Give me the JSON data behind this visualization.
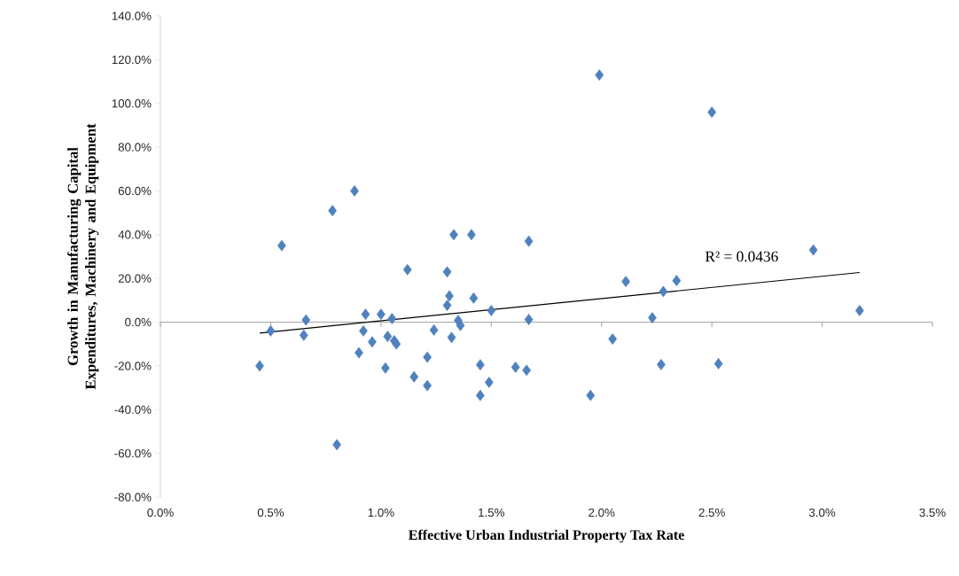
{
  "chart_data": {
    "type": "scatter",
    "xlabel": "Effective Urban Industrial Property Tax Rate",
    "ylabel": "Growth in Manufacturing Capital Expenditures, Machinery and Equipment",
    "xlim": [
      0,
      3.5
    ],
    "ylim": [
      -80,
      140
    ],
    "xticks": [
      {
        "value": 0,
        "label": "0.0%"
      },
      {
        "value": 0.5,
        "label": "0.5%"
      },
      {
        "value": 1,
        "label": "1.0%"
      },
      {
        "value": 1.5,
        "label": "1.5%"
      },
      {
        "value": 2,
        "label": "2.0%"
      },
      {
        "value": 2.5,
        "label": "2.5%"
      },
      {
        "value": 3,
        "label": "3.0%"
      },
      {
        "value": 3.5,
        "label": "3.5%"
      }
    ],
    "yticks": [
      {
        "value": -80,
        "label": "-80.0%"
      },
      {
        "value": -60,
        "label": "-60.0%"
      },
      {
        "value": -40,
        "label": "-40.0%"
      },
      {
        "value": -20,
        "label": "-20.0%"
      },
      {
        "value": 0,
        "label": "0.0%"
      },
      {
        "value": 20,
        "label": "20.0%"
      },
      {
        "value": 40,
        "label": "40.0%"
      },
      {
        "value": 60,
        "label": "60.0%"
      },
      {
        "value": 80,
        "label": "80.0%"
      },
      {
        "value": 100,
        "label": "100.0%"
      },
      {
        "value": 120,
        "label": "120.0%"
      },
      {
        "value": 140,
        "label": "140.0%"
      }
    ],
    "grid": false,
    "ref_lines": [
      {
        "axis": "y",
        "value": 0,
        "color": "#a6a6a6"
      }
    ],
    "annotations": [
      "R² = 0.0436"
    ],
    "series": [
      {
        "color": "#4f81bd",
        "marker": "diamond",
        "x": [
          0.45,
          0.5,
          0.55,
          0.66,
          0.65,
          0.78,
          0.88,
          0.8,
          0.9,
          0.92,
          0.93,
          0.96,
          1.0,
          1.02,
          1.03,
          1.05,
          1.06,
          1.07,
          1.12,
          1.15,
          1.21,
          1.21,
          1.24,
          1.3,
          1.3,
          1.31,
          1.33,
          1.32,
          1.35,
          1.36,
          1.41,
          1.42,
          1.45,
          1.45,
          1.49,
          1.5,
          1.61,
          1.66,
          1.67,
          1.67,
          1.95,
          1.99,
          2.05,
          2.11,
          2.23,
          2.27,
          2.28,
          2.34,
          2.5,
          2.53,
          2.96,
          3.17
        ],
        "values": [
          -20,
          -4,
          35,
          1,
          -6,
          51,
          60,
          -56,
          -14,
          -4,
          3.6,
          -9,
          3.6,
          -21,
          -6.5,
          1.6,
          -8.5,
          -10,
          24,
          -25,
          -16,
          -29,
          -3.6,
          23,
          7.7,
          12,
          40,
          -7,
          0.8,
          -1.5,
          40,
          11,
          -19.5,
          -33.5,
          -27.5,
          5.3,
          -20.6,
          -22,
          37,
          1.2,
          -33.5,
          113,
          -7.7,
          18.6,
          2,
          -19.4,
          14,
          19,
          96,
          -19,
          33,
          5.3
        ]
      },
      {
        "type": "line",
        "color": "#000000",
        "marker": "none",
        "x": [
          0.45,
          3.17
        ],
        "values": [
          -5,
          22.7
        ]
      }
    ]
  }
}
